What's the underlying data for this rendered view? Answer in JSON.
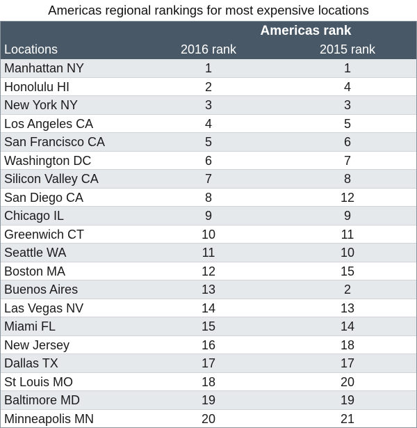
{
  "title": "Americas regional rankings for most expensive locations",
  "header": {
    "group_label": "Americas rank",
    "columns": [
      "Locations",
      "2016 rank",
      "2015 rank"
    ]
  },
  "colors": {
    "header_bg": "#495866",
    "row_shade": "#e6e9ec"
  },
  "chart_data": {
    "type": "table",
    "title": "Americas regional rankings for most expensive locations",
    "columns": [
      "Locations",
      "2016 rank",
      "2015 rank"
    ],
    "rows": [
      [
        "Manhattan NY",
        "1",
        "1"
      ],
      [
        "Honolulu HI",
        "2",
        "4"
      ],
      [
        "New York NY",
        "3",
        "3"
      ],
      [
        "Los Angeles CA",
        "4",
        "5"
      ],
      [
        "San Francisco CA",
        "5",
        "6"
      ],
      [
        "Washington DC",
        "6",
        "7"
      ],
      [
        "Silicon Valley CA",
        "7",
        "8"
      ],
      [
        "San Diego CA",
        "8",
        "12"
      ],
      [
        "Chicago IL",
        "9",
        "9"
      ],
      [
        "Greenwich CT",
        "10",
        "11"
      ],
      [
        "Seattle WA",
        "11",
        "10"
      ],
      [
        "Boston MA",
        "12",
        "15"
      ],
      [
        "Buenos Aires",
        "13",
        "2"
      ],
      [
        "Las Vegas NV",
        "14",
        "13"
      ],
      [
        "Miami FL",
        "15",
        "14"
      ],
      [
        "New Jersey",
        "16",
        "18"
      ],
      [
        "Dallas TX",
        "17",
        "17"
      ],
      [
        "St Louis MO",
        "18",
        "20"
      ],
      [
        "Baltimore MD",
        "19",
        "19"
      ],
      [
        "Minneapolis MN",
        "20",
        "21"
      ]
    ]
  }
}
